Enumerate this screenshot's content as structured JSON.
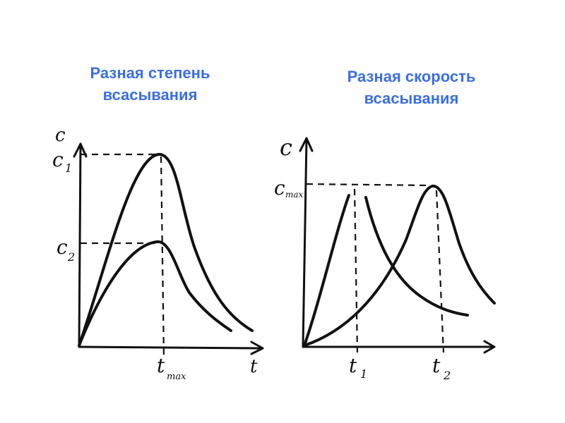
{
  "left": {
    "title_lines": [
      "Разная степень",
      "всасывания"
    ],
    "y_axis_label": "c",
    "x_axis_label": "t",
    "labels": {
      "c1": "c",
      "c1_sub": "1",
      "c2": "c",
      "c2_sub": "2",
      "tmax": "t",
      "tmax_sub": "max"
    }
  },
  "right": {
    "title_lines": [
      "Разная скорость",
      "всасывания"
    ],
    "y_axis_label": "c",
    "labels": {
      "cmax": "c",
      "cmax_sub": "max",
      "t1": "t",
      "t1_sub": "1",
      "t2": "t",
      "t2_sub": "2"
    }
  }
}
